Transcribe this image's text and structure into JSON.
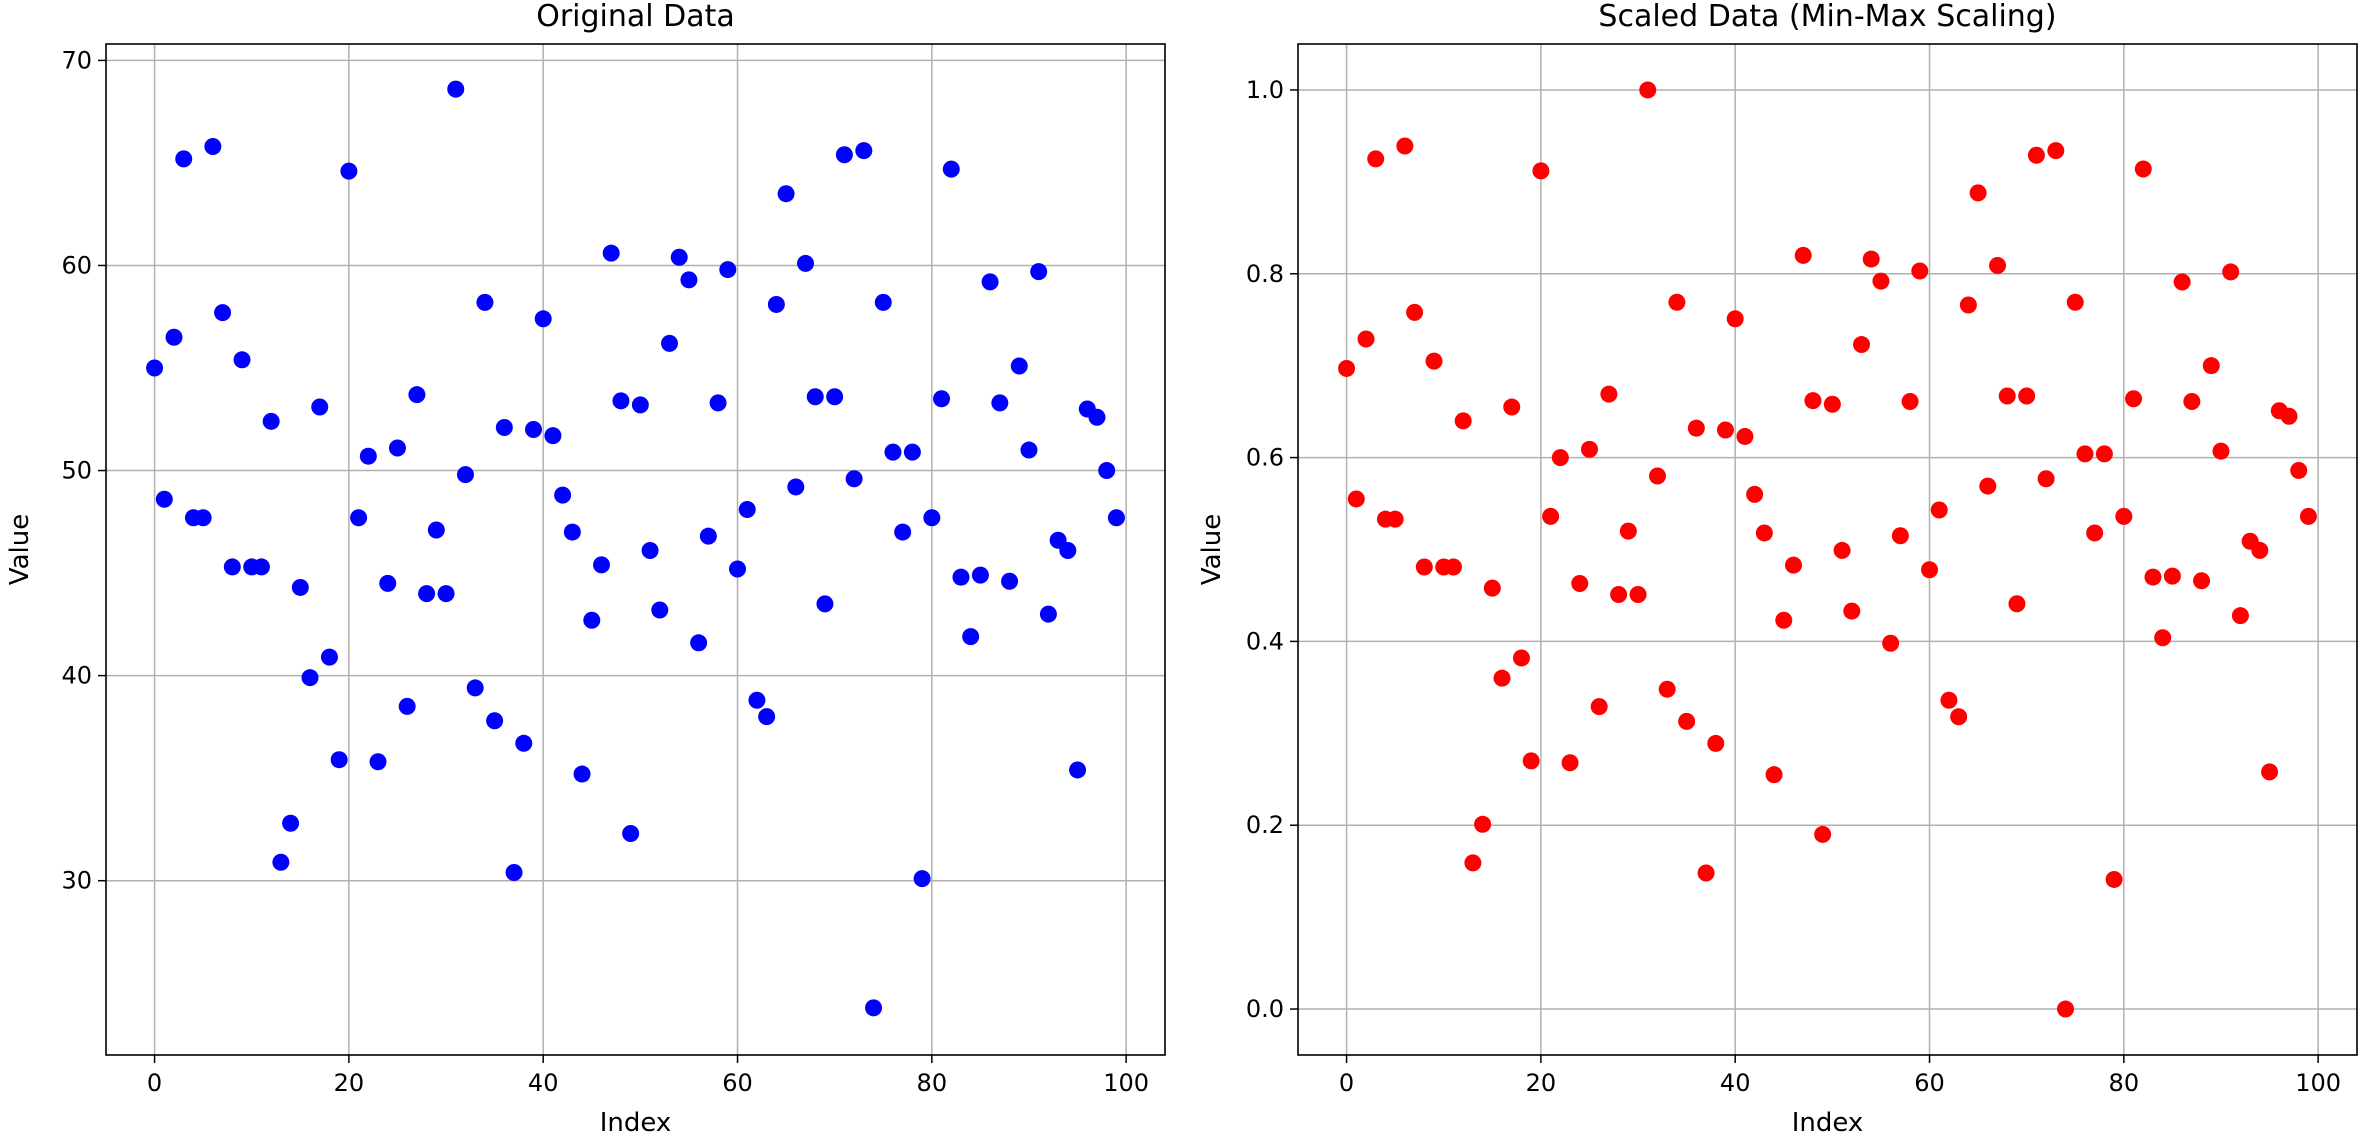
{
  "chart_data": [
    {
      "type": "scatter",
      "title": "Original Data",
      "xlabel": "Index",
      "ylabel": "Value",
      "xlim": [
        -5,
        104
      ],
      "ylim": [
        21.5,
        70.8
      ],
      "xticks": [
        0,
        20,
        40,
        60,
        80,
        100
      ],
      "xtick_labels": [
        "0",
        "20",
        "40",
        "60",
        "80",
        "100"
      ],
      "yticks": [
        30,
        40,
        50,
        60,
        70
      ],
      "ytick_labels": [
        "30",
        "40",
        "50",
        "60",
        "70"
      ],
      "grid": true,
      "color": "#0000ff",
      "x": [
        0,
        1,
        2,
        3,
        4,
        5,
        6,
        7,
        8,
        9,
        10,
        11,
        12,
        13,
        14,
        15,
        16,
        17,
        18,
        19,
        20,
        21,
        22,
        23,
        24,
        25,
        26,
        27,
        28,
        29,
        30,
        31,
        32,
        33,
        34,
        35,
        36,
        37,
        38,
        39,
        40,
        41,
        42,
        43,
        44,
        45,
        46,
        47,
        48,
        49,
        50,
        51,
        52,
        53,
        54,
        55,
        56,
        57,
        58,
        59,
        60,
        61,
        62,
        63,
        64,
        65,
        66,
        67,
        68,
        69,
        70,
        71,
        72,
        73,
        74,
        75,
        76,
        77,
        78,
        79,
        80,
        81,
        82,
        83,
        84,
        85,
        86,
        87,
        88,
        89,
        90,
        91,
        92,
        93,
        94,
        95,
        96,
        97,
        98,
        99
      ],
      "y": [
        55.0,
        48.6,
        56.5,
        65.2,
        47.7,
        47.7,
        65.8,
        57.7,
        45.3,
        55.4,
        45.3,
        45.3,
        52.4,
        30.9,
        32.8,
        44.3,
        39.9,
        53.1,
        40.9,
        35.9,
        64.6,
        47.7,
        50.7,
        35.8,
        44.5,
        51.1,
        38.5,
        53.7,
        44.0,
        47.1,
        44.0,
        68.6,
        49.8,
        39.4,
        58.2,
        37.8,
        52.1,
        30.4,
        36.7,
        52.0,
        57.4,
        51.7,
        48.8,
        47.0,
        35.2,
        42.7,
        45.4,
        60.6,
        53.4,
        32.3,
        53.2,
        46.1,
        43.2,
        56.2,
        60.4,
        59.3,
        41.6,
        46.8,
        53.3,
        59.8,
        45.2,
        48.1,
        38.8,
        38.0,
        58.1,
        63.5,
        49.2,
        60.1,
        53.6,
        43.5,
        53.6,
        65.4,
        49.6,
        65.6,
        23.8,
        58.2,
        50.9,
        47.0,
        50.9,
        30.1,
        47.7,
        53.5,
        64.7,
        44.8,
        41.9,
        44.9,
        59.2,
        53.3,
        44.6,
        55.1,
        51.0,
        59.7,
        43.0,
        46.6,
        46.1,
        35.4,
        53.0,
        52.6,
        50.0,
        47.7
      ]
    },
    {
      "type": "scatter",
      "title": "Scaled Data (Min-Max Scaling)",
      "xlabel": "Index",
      "ylabel": "Value",
      "xlim": [
        -5,
        104
      ],
      "ylim": [
        -0.05,
        1.05
      ],
      "xticks": [
        0,
        20,
        40,
        60,
        80,
        100
      ],
      "xtick_labels": [
        "0",
        "20",
        "40",
        "60",
        "80",
        "100"
      ],
      "yticks": [
        0.0,
        0.2,
        0.4,
        0.6,
        0.8,
        1.0
      ],
      "ytick_labels": [
        "0.0",
        "0.2",
        "0.4",
        "0.6",
        "0.8",
        "1.0"
      ],
      "grid": true,
      "color": "#ff0000",
      "x": [
        0,
        1,
        2,
        3,
        4,
        5,
        6,
        7,
        8,
        9,
        10,
        11,
        12,
        13,
        14,
        15,
        16,
        17,
        18,
        19,
        20,
        21,
        22,
        23,
        24,
        25,
        26,
        27,
        28,
        29,
        30,
        31,
        32,
        33,
        34,
        35,
        36,
        37,
        38,
        39,
        40,
        41,
        42,
        43,
        44,
        45,
        46,
        47,
        48,
        49,
        50,
        51,
        52,
        53,
        54,
        55,
        56,
        57,
        58,
        59,
        60,
        61,
        62,
        63,
        64,
        65,
        66,
        67,
        68,
        69,
        70,
        71,
        72,
        73,
        74,
        75,
        76,
        77,
        78,
        79,
        80,
        81,
        82,
        83,
        84,
        85,
        86,
        87,
        88,
        89,
        90,
        91,
        92,
        93,
        94,
        95,
        96,
        97,
        98,
        99
      ],
      "y": [
        0.697,
        0.555,
        0.729,
        0.925,
        0.533,
        0.533,
        0.939,
        0.758,
        0.481,
        0.705,
        0.481,
        0.481,
        0.64,
        0.159,
        0.201,
        0.458,
        0.36,
        0.655,
        0.382,
        0.27,
        0.912,
        0.536,
        0.6,
        0.268,
        0.463,
        0.609,
        0.329,
        0.669,
        0.451,
        0.52,
        0.451,
        1.0,
        0.58,
        0.348,
        0.769,
        0.313,
        0.632,
        0.148,
        0.289,
        0.63,
        0.751,
        0.623,
        0.56,
        0.518,
        0.255,
        0.423,
        0.483,
        0.82,
        0.662,
        0.19,
        0.658,
        0.499,
        0.433,
        0.723,
        0.816,
        0.792,
        0.398,
        0.515,
        0.661,
        0.803,
        0.478,
        0.543,
        0.336,
        0.318,
        0.766,
        0.888,
        0.569,
        0.809,
        0.667,
        0.441,
        0.667,
        0.929,
        0.577,
        0.934,
        0.0,
        0.769,
        0.604,
        0.518,
        0.604,
        0.141,
        0.536,
        0.664,
        0.914,
        0.47,
        0.404,
        0.471,
        0.791,
        0.661,
        0.466,
        0.7,
        0.607,
        0.802,
        0.428,
        0.509,
        0.499,
        0.258,
        0.651,
        0.645,
        0.586,
        0.536
      ]
    }
  ]
}
